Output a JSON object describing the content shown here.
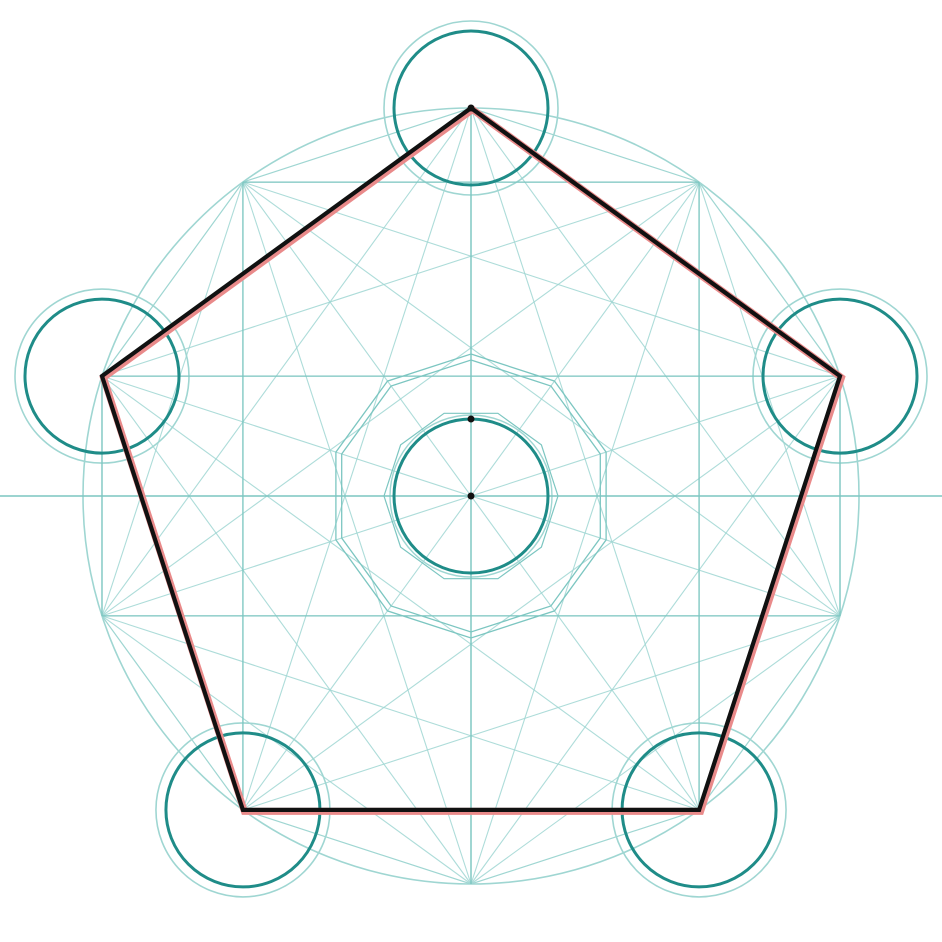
{
  "diagram": {
    "polygon_sides": 5,
    "decagon_sides": 10,
    "colors": {
      "background": "#ffffff",
      "construction_faint": "#9fd6d2",
      "construction_mid": "#7cc6c1",
      "circle_dark": "#1f8c88",
      "outline_halo": "#e98a8a",
      "outline": "#111111",
      "point": "#111111"
    }
  }
}
